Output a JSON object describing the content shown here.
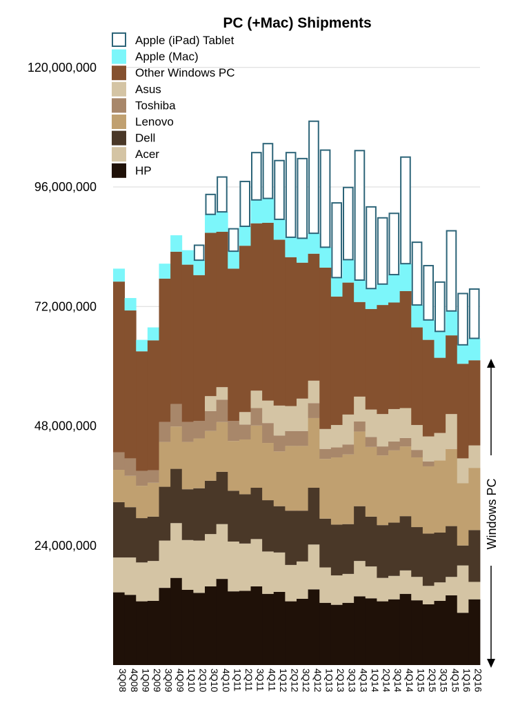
{
  "chart_data": {
    "type": "bar",
    "stacked": true,
    "title": "PC (+Mac) Shipments",
    "xlabel": "",
    "ylabel": "",
    "ylim": [
      0,
      128000000
    ],
    "yticks": [
      24000000,
      48000000,
      72000000,
      96000000,
      120000000
    ],
    "ytick_labels": [
      "24,000,000",
      "48,000,000",
      "72,000,000",
      "96,000,000",
      "120,000,000"
    ],
    "grid": true,
    "legend_position": "top-left",
    "categories": [
      "3Q08",
      "4Q08",
      "1Q09",
      "2Q09",
      "3Q09",
      "4Q09",
      "1Q10",
      "2Q10",
      "3Q10",
      "4Q10",
      "1Q11",
      "2Q11",
      "3Q11",
      "4Q11",
      "1Q12",
      "2Q12",
      "3Q12",
      "4Q12",
      "1Q13",
      "2Q13",
      "3Q13",
      "4Q13",
      "1Q14",
      "2Q14",
      "3Q14",
      "4Q14",
      "1Q15",
      "2Q15",
      "3Q15",
      "4Q15",
      "1Q16",
      "2Q16"
    ],
    "xtick_labels": [
      "3Q08",
      "",
      "4Q08",
      "",
      "1Q09",
      "",
      "2Q09",
      "",
      "3Q09",
      "",
      "4Q09",
      "",
      "1Q10",
      "",
      "2Q10",
      "",
      "3Q10",
      "",
      "4Q10",
      "",
      "1Q11",
      "",
      "2Q11",
      "",
      "3Q11",
      "",
      "4Q11",
      "",
      "1Q12",
      "",
      "2Q12",
      "",
      "3Q12",
      "",
      "4Q12",
      "",
      "1Q13",
      "",
      "2Q13",
      "",
      "3Q13",
      "",
      "4Q13",
      "",
      "1Q14",
      "",
      "2Q14",
      "",
      "3Q14",
      "",
      "4Q14",
      "",
      "1Q15",
      "",
      "2Q15",
      "",
      "3Q15",
      "",
      "4Q15",
      "",
      "1Q16",
      "",
      "2Q16",
      ""
    ],
    "series": [
      {
        "name": "HP",
        "color": "#1f1108",
        "style": "fill",
        "values": [
          14600000,
          14100000,
          12800000,
          12900000,
          15500000,
          17500000,
          15100000,
          14500000,
          15800000,
          17300000,
          14800000,
          14900000,
          15800000,
          14300000,
          14700000,
          12800000,
          13300000,
          15200000,
          12500000,
          12100000,
          12500000,
          13800000,
          13400000,
          12800000,
          13200000,
          14300000,
          13000000,
          12200000,
          12900000,
          14000000,
          10500000,
          13200000
        ]
      },
      {
        "name": "Acer",
        "color": "#d4c4a4",
        "style": "fill",
        "values": [
          7000000,
          7500000,
          7800000,
          8000000,
          9500000,
          11000000,
          10000000,
          10500000,
          10500000,
          11000000,
          10000000,
          9500000,
          9500000,
          8500000,
          7900000,
          7300000,
          7500000,
          9000000,
          7100000,
          5900000,
          5800000,
          7100000,
          6400000,
          4700000,
          4700000,
          4700000,
          4700000,
          3700000,
          3700000,
          3700000,
          9500000,
          3500000
        ]
      },
      {
        "name": "Dell",
        "color": "#4a3828",
        "style": "fill",
        "values": [
          11100000,
          10100000,
          8900000,
          8900000,
          10800000,
          10900000,
          10200000,
          10500000,
          10700000,
          10500000,
          10200000,
          9900000,
          10300000,
          10300000,
          9300000,
          10900000,
          10200000,
          11400000,
          9800000,
          10200000,
          10000000,
          11000000,
          10000000,
          10600000,
          10700000,
          10900000,
          10000000,
          10500000,
          10000000,
          10200000,
          4000000,
          10400000
        ]
      },
      {
        "name": "Lenovo",
        "color": "#c0a070",
        "style": "fill",
        "values": [
          6500000,
          6300000,
          6500000,
          6800000,
          9000000,
          8500000,
          9500000,
          10000000,
          10000000,
          10000000,
          10000000,
          11000000,
          12500000,
          11500000,
          11000000,
          13000000,
          13000000,
          14000000,
          12000000,
          13500000,
          14000000,
          15000000,
          14000000,
          14000000,
          14500000,
          14000000,
          14000000,
          13500000,
          14500000,
          15500000,
          12500000,
          12500000
        ]
      },
      {
        "name": "Toshiba",
        "color": "#a8876a",
        "style": "fill",
        "values": [
          3500000,
          3500000,
          3000000,
          2500000,
          4000000,
          4500000,
          4000000,
          3500000,
          4000000,
          4500000,
          4000000,
          3000000,
          3500000,
          4000000,
          3200000,
          3000000,
          3000000,
          3000000,
          2000000,
          2000000,
          2000000,
          2000000,
          2000000,
          1800000,
          1800000,
          1700000,
          1500000,
          1000000,
          0,
          0,
          0,
          0
        ]
      },
      {
        "name": "Asus",
        "color": "#d4c4a4",
        "style": "fill",
        "values": [
          0,
          0,
          0,
          0,
          0,
          0,
          0,
          0,
          3000000,
          2500000,
          0,
          2500000,
          3500000,
          4500000,
          6000000,
          5000000,
          6500000,
          4500000,
          4000000,
          4500000,
          6000000,
          5000000,
          5500000,
          6500000,
          6500000,
          6000000,
          5000000,
          5000000,
          5500000,
          7000000,
          5000000,
          4500000
        ]
      },
      {
        "name": "Other Windows PC",
        "color": "#85512f",
        "style": "fill",
        "values": [
          34300000,
          29700000,
          24000000,
          26100000,
          28800000,
          30600000,
          31600000,
          29300000,
          32800000,
          31200000,
          30600000,
          33400000,
          33600000,
          35700000,
          33300000,
          29900000,
          27300000,
          25500000,
          32400000,
          25800000,
          26500000,
          19000000,
          20200000,
          21900000,
          21400000,
          23500000,
          19600000,
          19400000,
          15100000,
          15800000,
          19000000,
          17100000
        ]
      },
      {
        "name": "Apple (Mac)",
        "color": "#7cf6fa",
        "style": "fill",
        "values": [
          2600000,
          2500000,
          2300000,
          2600000,
          3000000,
          3300000,
          2900000,
          3000000,
          3700000,
          4000000,
          3500000,
          3900000,
          4700000,
          4900000,
          4100000,
          4000000,
          4900000,
          4100000,
          4100000,
          3800000,
          4600000,
          4400000,
          4100000,
          4200000,
          5600000,
          5500000,
          4500000,
          4000000,
          5300000,
          4900000,
          3800000,
          4400000
        ]
      },
      {
        "name": "Apple (iPad) Tablet",
        "color": "#2c6478",
        "style": "outline",
        "values": [
          0,
          0,
          0,
          0,
          0,
          0,
          0,
          3000000,
          4000000,
          7000000,
          4500000,
          9000000,
          9500000,
          11000000,
          11800000,
          17000000,
          16000000,
          22500000,
          19500000,
          15000000,
          14500000,
          26000000,
          16400000,
          13300000,
          12300000,
          21400000,
          12600000,
          10900000,
          9900000,
          16100000,
          10300000,
          9900000
        ]
      }
    ],
    "annotations": [
      {
        "text": "Windows PC",
        "type": "vertical-range-arrow"
      }
    ]
  }
}
